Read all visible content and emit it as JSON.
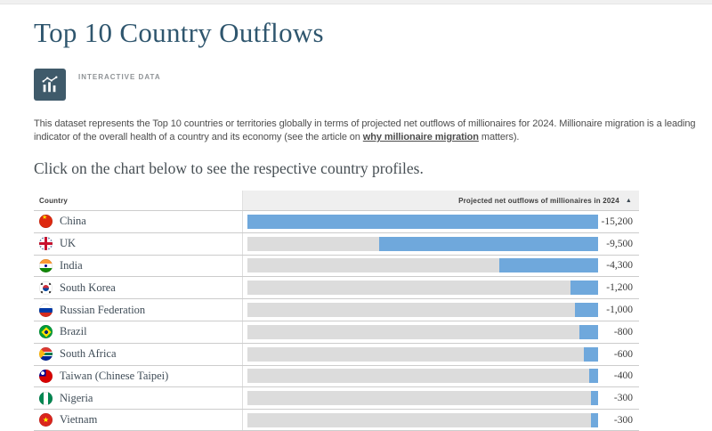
{
  "page": {
    "title": "Top 10 Country Outflows",
    "badge_label": "INTERACTIVE DATA",
    "intro_before": "This dataset represents the Top 10 countries or territories globally in terms of projected net outflows of millionaires for 2024. Millionaire migration is a leading indicator of the overall health of a country and its economy (see the article on ",
    "intro_link": "why millionaire migration",
    "intro_after": " matters).",
    "subheading": "Click on the chart below to see the respective country profiles."
  },
  "table_header": {
    "country_column": "Country",
    "value_column": "Projected net outflows of millionaires in 2024",
    "sort_icon": "▲"
  },
  "chart_data": {
    "type": "bar",
    "orientation": "horizontal-right-anchored",
    "title": "Projected net outflows of millionaires in 2024",
    "categories": [
      "China",
      "UK",
      "India",
      "South Korea",
      "Russian Federation",
      "Brazil",
      "South Africa",
      "Taiwan (Chinese Taipei)",
      "Nigeria",
      "Vietnam"
    ],
    "values": [
      -15200,
      -9500,
      -4300,
      -1200,
      -1000,
      -800,
      -600,
      -400,
      -300,
      -300
    ],
    "value_labels": [
      "-15,200",
      "-9,500",
      "-4,300",
      "-1,200",
      "-1,000",
      "-800",
      "-600",
      "-400",
      "-300",
      "-300"
    ],
    "flags": [
      "cn",
      "gb",
      "in",
      "kr",
      "ru",
      "br",
      "za",
      "tw",
      "ng",
      "vn"
    ],
    "max_magnitude": 15200,
    "bar_color": "#6fa8dc",
    "track_color": "#dcdcdc",
    "legend": "none",
    "grid": "off"
  },
  "colors": {
    "accent_dark_blue": "#2f566e",
    "badge_box": "#3f5a6a",
    "header_bg": "#efefef",
    "row_border": "#cccccc"
  }
}
